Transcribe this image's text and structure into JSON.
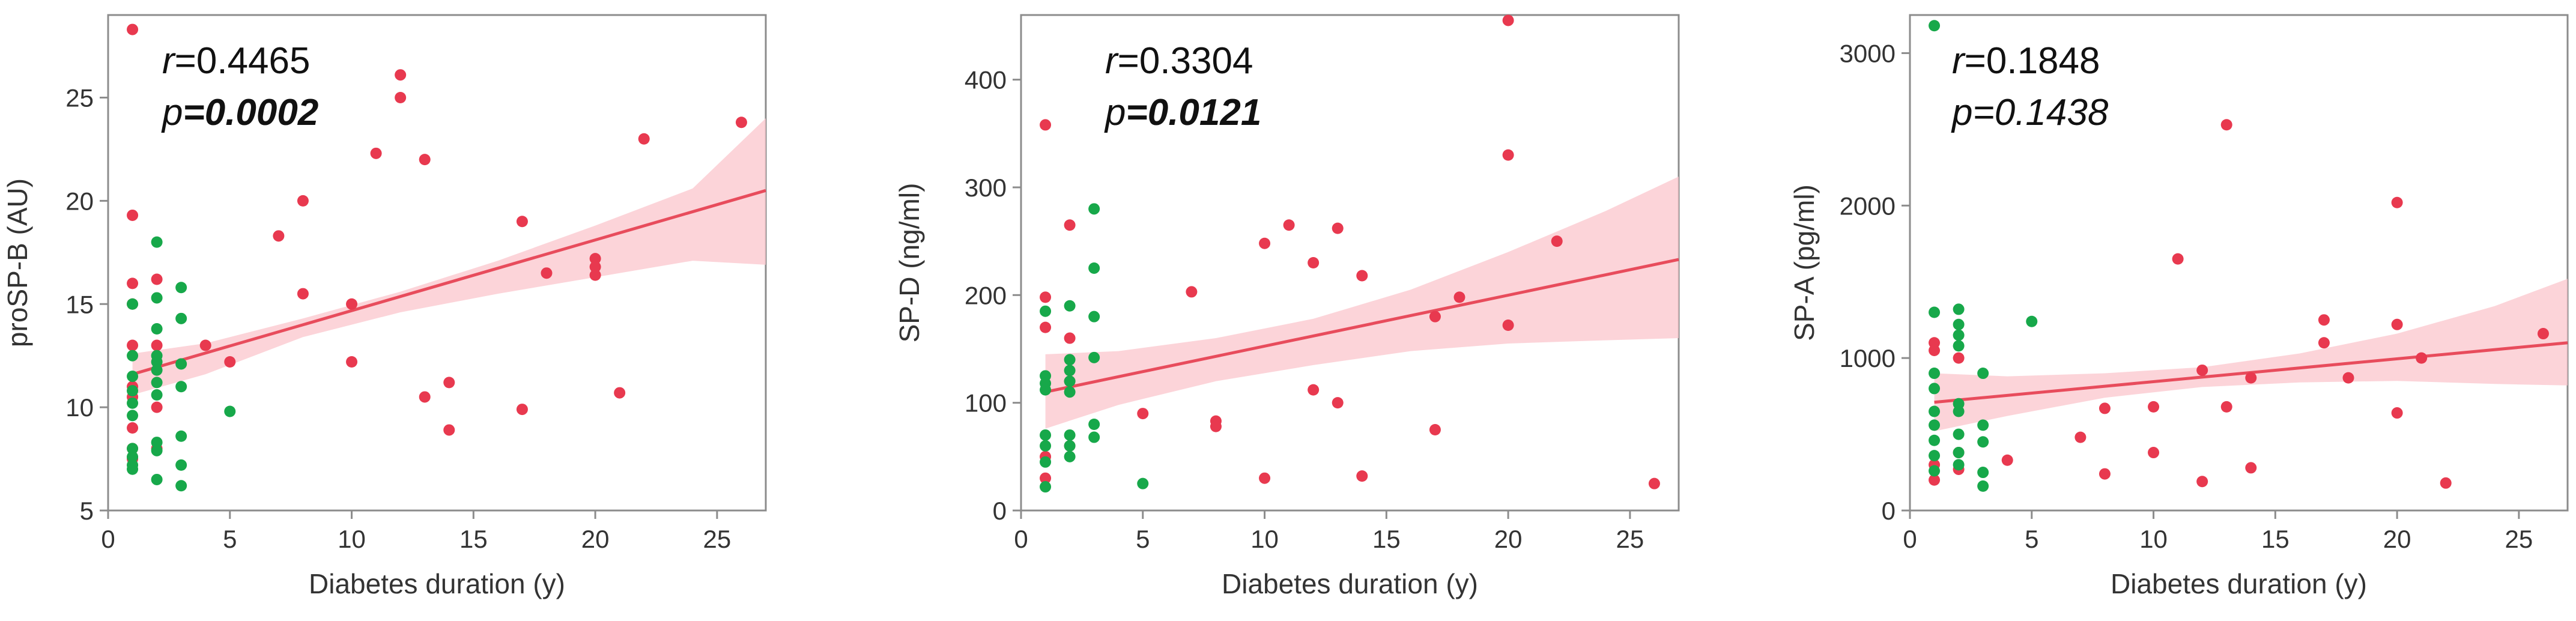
{
  "chart_data": [
    {
      "type": "scatter",
      "xlabel": "Diabetes duration (y)",
      "ylabel": "proSP-B (AU)",
      "xlim": [
        0,
        27
      ],
      "ylim": [
        5,
        29
      ],
      "xticks": [
        0,
        5,
        10,
        15,
        20,
        25
      ],
      "yticks": [
        5,
        10,
        15,
        20,
        25
      ],
      "r_label": "r",
      "r_value": "=0.4465",
      "p_label": "p",
      "p_value": "=0.0002",
      "p_bold": true,
      "colors": {
        "red": "#e8394f",
        "green": "#17a84a",
        "line": "#e84c5c",
        "band": "#fbc9cf"
      },
      "regression": {
        "x": [
          1,
          27
        ],
        "y": [
          11.6,
          20.5
        ]
      },
      "ci_band": {
        "x": [
          1,
          4,
          8,
          12,
          16,
          20,
          24,
          27
        ],
        "upper": [
          12.6,
          13.1,
          14.3,
          15.6,
          17.1,
          18.8,
          20.6,
          24.0
        ],
        "lower": [
          10.6,
          11.6,
          13.4,
          14.6,
          15.5,
          16.3,
          17.1,
          16.9
        ]
      },
      "series": [
        {
          "name": "red",
          "x": [
            1,
            1,
            1,
            1,
            1,
            1,
            1,
            1,
            1,
            1,
            2,
            2,
            2,
            2,
            4,
            5,
            7,
            8,
            8,
            10,
            10,
            11,
            12,
            12,
            13,
            13,
            14,
            14,
            17,
            17,
            18,
            20,
            20,
            20,
            21,
            22,
            26
          ],
          "y": [
            28.3,
            19.3,
            16.0,
            15.0,
            13.0,
            11.0,
            10.5,
            9.0,
            8.0,
            7.5,
            16.2,
            13.0,
            10.0,
            8.0,
            13.0,
            12.2,
            18.3,
            20.0,
            15.5,
            15.0,
            12.2,
            22.3,
            26.1,
            25.0,
            22.0,
            10.5,
            11.2,
            8.9,
            19.0,
            9.9,
            16.5,
            17.2,
            16.8,
            16.4,
            10.7,
            23.0,
            23.8
          ]
        },
        {
          "name": "green",
          "x": [
            1,
            1,
            1,
            1,
            1,
            1,
            1,
            1,
            1,
            1,
            2,
            2,
            2,
            2,
            2,
            2,
            2,
            2,
            2,
            2,
            2,
            3,
            3,
            3,
            3,
            3,
            3,
            3,
            5
          ],
          "y": [
            15.0,
            12.5,
            11.5,
            10.8,
            10.2,
            9.6,
            8.0,
            7.6,
            7.2,
            7.0,
            18.0,
            15.3,
            13.8,
            12.2,
            11.8,
            11.2,
            10.6,
            8.3,
            7.9,
            6.5,
            12.5,
            15.8,
            14.3,
            12.1,
            11.0,
            8.6,
            7.2,
            6.2,
            9.8
          ]
        }
      ]
    },
    {
      "type": "scatter",
      "xlabel": "Diabetes duration (y)",
      "ylabel": "SP-D (ng/ml)",
      "xlim": [
        0,
        27
      ],
      "ylim": [
        0,
        460
      ],
      "xticks": [
        0,
        5,
        10,
        15,
        20,
        25
      ],
      "yticks": [
        0,
        100,
        200,
        300,
        400
      ],
      "r_label": "r",
      "r_value": "=0.3304",
      "p_label": "p",
      "p_value": "=0.0121",
      "p_bold": true,
      "colors": {
        "red": "#e8394f",
        "green": "#17a84a",
        "line": "#e84c5c",
        "band": "#fbc9cf"
      },
      "regression": {
        "x": [
          1,
          27
        ],
        "y": [
          110,
          233
        ]
      },
      "ci_band": {
        "x": [
          1,
          4,
          8,
          12,
          16,
          20,
          24,
          27
        ],
        "upper": [
          145,
          148,
          160,
          178,
          205,
          240,
          278,
          310
        ],
        "lower": [
          76,
          98,
          120,
          135,
          148,
          155,
          158,
          160
        ]
      },
      "series": [
        {
          "name": "red",
          "x": [
            1,
            1,
            1,
            1,
            1,
            2,
            2,
            2,
            2,
            5,
            7,
            8,
            8,
            10,
            10,
            11,
            12,
            12,
            13,
            13,
            14,
            14,
            17,
            17,
            18,
            20,
            20,
            20,
            22,
            26
          ],
          "y": [
            358,
            198,
            170,
            50,
            30,
            265,
            160,
            120,
            60,
            90,
            203,
            83,
            78,
            248,
            30,
            265,
            230,
            112,
            262,
            100,
            218,
            32,
            180,
            75,
            198,
            455,
            330,
            172,
            250,
            25
          ]
        },
        {
          "name": "green",
          "x": [
            1,
            1,
            1,
            1,
            1,
            1,
            1,
            1,
            2,
            2,
            2,
            2,
            2,
            2,
            2,
            2,
            3,
            3,
            3,
            3,
            3,
            3,
            5
          ],
          "y": [
            185,
            125,
            118,
            112,
            70,
            60,
            45,
            22,
            190,
            140,
            130,
            120,
            110,
            70,
            60,
            50,
            280,
            225,
            180,
            142,
            80,
            68,
            25
          ]
        }
      ]
    },
    {
      "type": "scatter",
      "xlabel": "Diabetes duration (y)",
      "ylabel": "SP-A (pg/ml)",
      "xlim": [
        0,
        27
      ],
      "ylim": [
        0,
        3250
      ],
      "xticks": [
        0,
        5,
        10,
        15,
        20,
        25
      ],
      "yticks": [
        0,
        1000,
        2000,
        3000
      ],
      "r_label": "r",
      "r_value": "=0.1848",
      "p_label": "p",
      "p_value": "=0.1438",
      "p_bold": false,
      "colors": {
        "red": "#e8394f",
        "green": "#17a84a",
        "line": "#e84c5c",
        "band": "#fbc9cf"
      },
      "regression": {
        "x": [
          1,
          27
        ],
        "y": [
          710,
          1100
        ]
      },
      "ci_band": {
        "x": [
          1,
          4,
          8,
          12,
          16,
          20,
          24,
          27
        ],
        "upper": [
          900,
          880,
          900,
          940,
          1030,
          1160,
          1340,
          1520
        ],
        "lower": [
          520,
          620,
          740,
          810,
          840,
          850,
          830,
          820
        ]
      },
      "series": [
        {
          "name": "red",
          "x": [
            1,
            1,
            1,
            1,
            2,
            2,
            2,
            4,
            7,
            8,
            8,
            10,
            10,
            11,
            12,
            12,
            13,
            13,
            14,
            14,
            17,
            17,
            18,
            20,
            20,
            20,
            21,
            22,
            26
          ],
          "y": [
            1100,
            1050,
            300,
            200,
            1000,
            380,
            270,
            330,
            480,
            670,
            240,
            680,
            380,
            1650,
            920,
            190,
            2530,
            680,
            870,
            280,
            1250,
            1100,
            870,
            2020,
            1220,
            640,
            1000,
            180,
            1160
          ]
        },
        {
          "name": "green",
          "x": [
            1,
            1,
            1,
            1,
            1,
            1,
            1,
            1,
            1,
            2,
            2,
            2,
            2,
            2,
            2,
            2,
            2,
            2,
            3,
            3,
            3,
            3,
            3,
            5
          ],
          "y": [
            3180,
            1300,
            900,
            800,
            650,
            560,
            460,
            360,
            260,
            1320,
            1220,
            1150,
            1080,
            700,
            650,
            500,
            380,
            300,
            900,
            560,
            450,
            250,
            160,
            1240
          ]
        }
      ]
    }
  ]
}
